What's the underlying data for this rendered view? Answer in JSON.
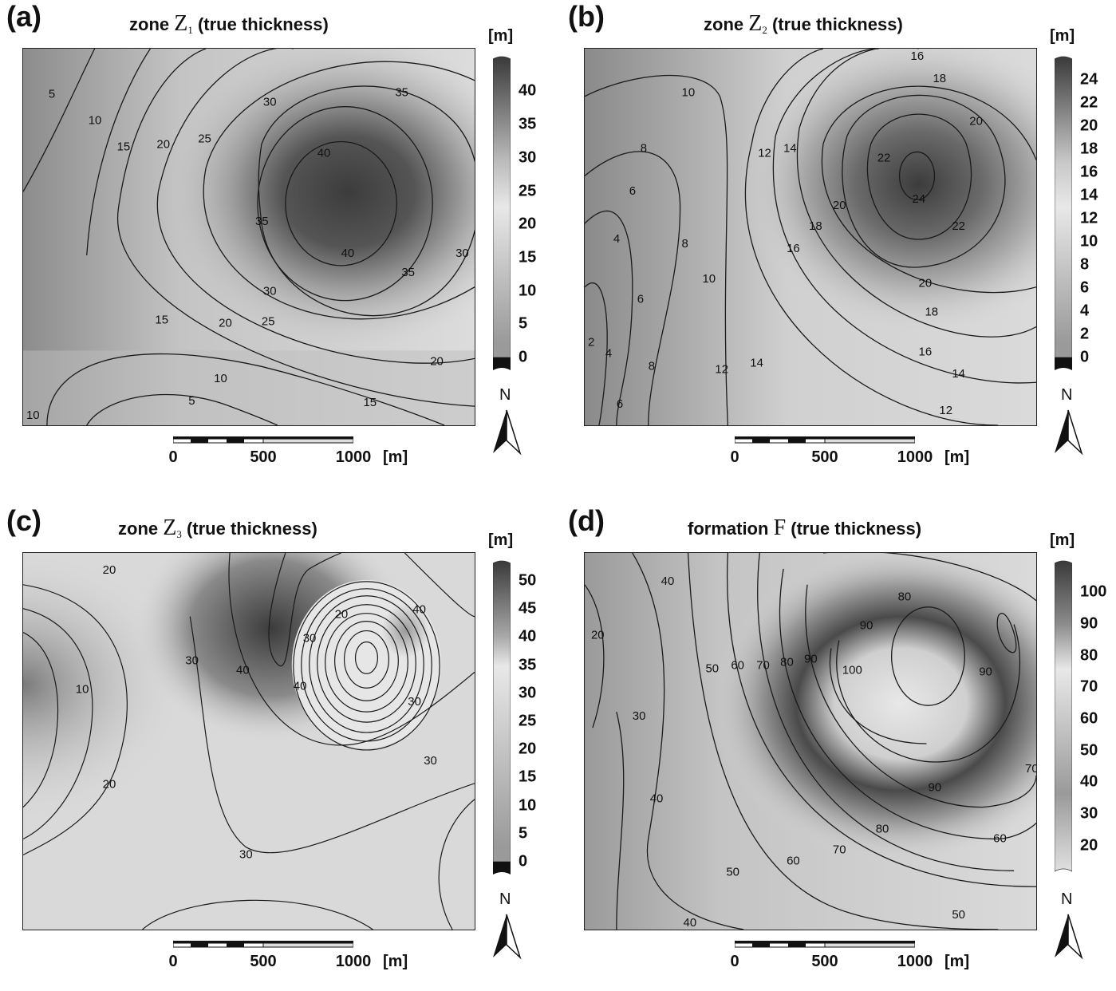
{
  "panels": [
    {
      "letter": "(a)",
      "title_pre": "zone ",
      "title_sym": "Z",
      "title_sub": "1",
      "title_post": " (true thickness)",
      "unit": "[m]",
      "colorbar_ticks": [
        "40",
        "35",
        "30",
        "25",
        "20",
        "15",
        "10",
        "5",
        "0"
      ],
      "contour_labels": [
        "5",
        "10",
        "15",
        "20",
        "25",
        "30",
        "35",
        "40",
        "40",
        "35",
        "35",
        "30",
        "30",
        "25",
        "20",
        "15",
        "10",
        "5",
        "15",
        "20",
        "10"
      ]
    },
    {
      "letter": "(b)",
      "title_pre": "zone ",
      "title_sym": "Z",
      "title_sub": "2",
      "title_post": " (true thickness)",
      "unit": "[m]",
      "colorbar_ticks": [
        "24",
        "22",
        "20",
        "18",
        "16",
        "14",
        "12",
        "10",
        "8",
        "6",
        "4",
        "2",
        "0"
      ],
      "contour_labels": [
        "10",
        "16",
        "18",
        "20",
        "22",
        "24",
        "22",
        "20",
        "18",
        "16",
        "14",
        "12",
        "8",
        "6",
        "4",
        "2",
        "12",
        "14",
        "16",
        "18",
        "20",
        "8",
        "10",
        "12",
        "14",
        "6",
        "4",
        "6",
        "8"
      ]
    },
    {
      "letter": "(c)",
      "title_pre": "zone ",
      "title_sym": "Z",
      "title_sub": "3",
      "title_post": " (true thickness)",
      "unit": "[m]",
      "colorbar_ticks": [
        "50",
        "45",
        "40",
        "35",
        "30",
        "25",
        "20",
        "15",
        "10",
        "5",
        "0"
      ],
      "contour_labels": [
        "20",
        "10",
        "20",
        "30",
        "40",
        "30",
        "20",
        "40",
        "40",
        "30",
        "30",
        "30"
      ]
    },
    {
      "letter": "(d)",
      "title_pre": "formation ",
      "title_sym": "F",
      "title_sub": "",
      "title_post": " (true thickness)",
      "unit": "[m]",
      "colorbar_ticks": [
        "100",
        "90",
        "80",
        "70",
        "60",
        "50",
        "40",
        "30",
        "20"
      ],
      "contour_labels": [
        "40",
        "20",
        "30",
        "40",
        "50",
        "60",
        "70",
        "80",
        "90",
        "100",
        "90",
        "80",
        "90",
        "90",
        "80",
        "70",
        "60",
        "50",
        "40",
        "60",
        "50",
        "70"
      ]
    }
  ],
  "scale": {
    "ticks": [
      "0",
      "500",
      "1000"
    ],
    "unit": "[m]"
  },
  "north_label": "N",
  "colors": {
    "dark": "#3a3a3a",
    "light": "#e8e8e8",
    "line": "#1a1a1a"
  }
}
